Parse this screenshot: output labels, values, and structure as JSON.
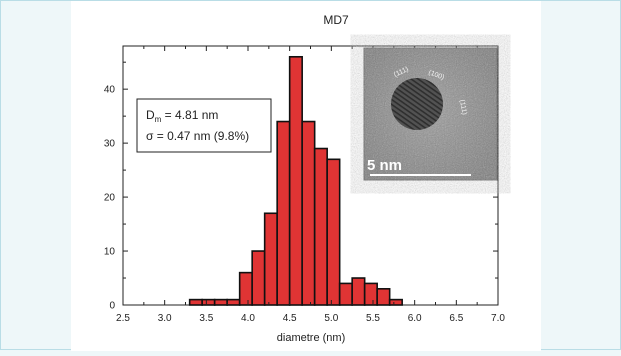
{
  "chart_data": {
    "type": "bar",
    "title": "MD7",
    "xlabel": "diametre (nm)",
    "ylabel": "",
    "xlim": [
      2.5,
      7.0
    ],
    "ylim": [
      0,
      48
    ],
    "x_ticks": [
      "2.5",
      "3.0",
      "3.5",
      "4.0",
      "4.5",
      "5.0",
      "5.5",
      "6.0",
      "6.5",
      "7.0"
    ],
    "y_ticks": [
      "0",
      "10",
      "20",
      "30",
      "40"
    ],
    "bin_width": 0.15,
    "bins": [
      {
        "x": 3.3,
        "value": 1
      },
      {
        "x": 3.45,
        "value": 1
      },
      {
        "x": 3.6,
        "value": 1
      },
      {
        "x": 3.75,
        "value": 1
      },
      {
        "x": 3.9,
        "value": 6
      },
      {
        "x": 4.05,
        "value": 10
      },
      {
        "x": 4.2,
        "value": 17
      },
      {
        "x": 4.35,
        "value": 34
      },
      {
        "x": 4.5,
        "value": 46
      },
      {
        "x": 4.65,
        "value": 34
      },
      {
        "x": 4.8,
        "value": 29
      },
      {
        "x": 4.95,
        "value": 27
      },
      {
        "x": 5.1,
        "value": 4
      },
      {
        "x": 5.25,
        "value": 5
      },
      {
        "x": 5.4,
        "value": 4
      },
      {
        "x": 5.55,
        "value": 3
      },
      {
        "x": 5.7,
        "value": 1
      }
    ],
    "annotation": {
      "dm_symbol": "D",
      "dm_sub": "m",
      "dm_value": " = 4.81 nm",
      "sigma_line": "σ = 0.47 nm (9.8%)"
    },
    "inset": {
      "scale_label": "5  nm",
      "facets": [
        "(111)",
        "(100)",
        "(111)"
      ]
    },
    "grid": false
  }
}
